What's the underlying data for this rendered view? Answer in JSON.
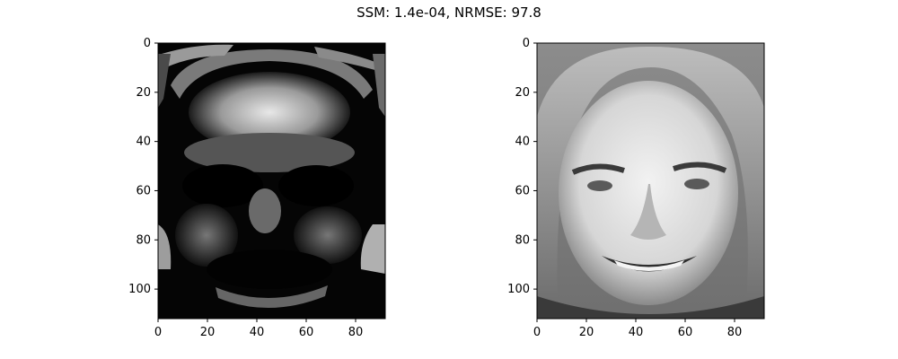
{
  "figure": {
    "suptitle": "SSM: 1.4e-04, NRMSE: 97.8"
  },
  "chart_data": [
    {
      "type": "heatmap",
      "panel": "left",
      "content": "grayscale face difference image (mostly dark, bright forehead and hair edges)",
      "image_shape": [
        112,
        92
      ],
      "colormap": "gray",
      "xlim": [
        0,
        92
      ],
      "ylim": [
        112,
        0
      ],
      "xticks": [
        0,
        20,
        40,
        60,
        80
      ],
      "yticks": [
        0,
        20,
        40,
        60,
        80,
        100
      ],
      "grid": false
    },
    {
      "type": "heatmap",
      "panel": "right",
      "content": "grayscale portrait photo of a smiling young man with long hair",
      "image_shape": [
        112,
        92
      ],
      "colormap": "gray",
      "xlim": [
        0,
        92
      ],
      "ylim": [
        112,
        0
      ],
      "xticks": [
        0,
        20,
        40,
        60,
        80
      ],
      "yticks": [
        0,
        20,
        40,
        60,
        80,
        100
      ],
      "grid": false
    }
  ]
}
